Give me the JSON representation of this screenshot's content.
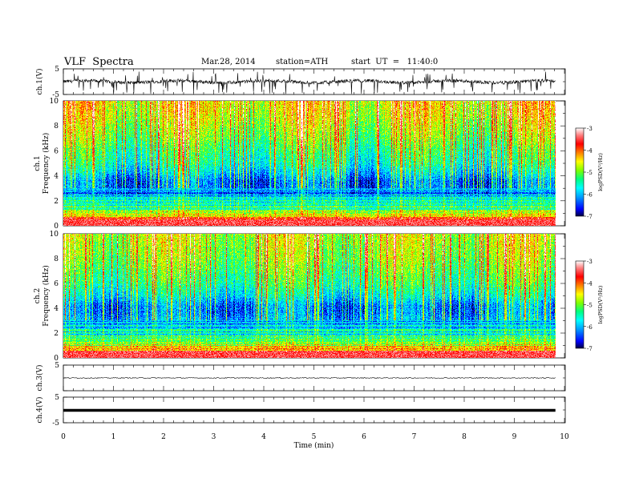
{
  "header": {
    "title": "VLF  Spectra",
    "date": "Mar.28, 2014",
    "station": "station=ATH",
    "start": "start  UT  =   11:40:0"
  },
  "chart_data": {
    "type": "heatmap",
    "x_axis": {
      "label": "Time  (min)",
      "range": [
        0,
        10
      ],
      "ticks": [
        "0",
        "1",
        "2",
        "3",
        "4",
        "5",
        "6",
        "7",
        "8",
        "9",
        "10"
      ],
      "data_extent": 9.82
    },
    "panels": [
      {
        "type": "line",
        "label": "ch.1(V)",
        "ylim": [
          -5,
          5
        ],
        "ticks": [
          "5",
          "-5"
        ],
        "trace": "noisy waveform near 0 V with frequent negative spikes"
      },
      {
        "type": "heatmap",
        "label": "ch.1",
        "ylabel": "Frequency  (kHz)",
        "ylim": [
          0,
          10
        ],
        "yticks": [
          "0",
          "2",
          "4",
          "6",
          "8",
          "10"
        ],
        "intensity_profile_log": {
          "freq_khz": [
            0.3,
            0.7,
            1.2,
            1.8,
            2.4,
            3.0,
            3.6,
            4.2,
            5.0,
            6.0,
            7.0,
            8.0,
            9.0,
            10.0
          ],
          "mean": [
            -3.3,
            -4.4,
            -5.2,
            -5.6,
            -6.0,
            -6.3,
            -6.3,
            -5.9,
            -5.5,
            -5.3,
            -5.0,
            -4.8,
            -4.6,
            -4.5
          ]
        }
      },
      {
        "type": "heatmap",
        "label": "ch.2",
        "ylabel": "Frequency  (kHz)",
        "ylim": [
          0,
          10
        ],
        "yticks": [
          "0",
          "2",
          "4",
          "6",
          "8",
          "10"
        ],
        "intensity_profile_log": {
          "freq_khz": [
            0.3,
            0.7,
            1.2,
            1.8,
            2.4,
            3.0,
            3.6,
            4.2,
            5.0,
            6.0,
            7.0,
            8.0,
            9.0,
            10.0
          ],
          "mean": [
            -3.4,
            -4.4,
            -5.1,
            -5.5,
            -5.8,
            -6.0,
            -6.2,
            -6.2,
            -5.7,
            -5.3,
            -5.1,
            -4.9,
            -4.8,
            -4.7
          ]
        }
      },
      {
        "type": "line",
        "label": "ch.3(V)",
        "ylim": [
          -5,
          5
        ],
        "ticks": [
          "5"
        ],
        "trace": "flat line near 0 V"
      },
      {
        "type": "line",
        "label": "ch.4(V)",
        "ylim": [
          -5,
          5
        ],
        "ticks": [
          "5",
          "-5"
        ],
        "trace": "thick flat line near 0 V"
      }
    ],
    "colorbar": {
      "label": "logPSD(V²/Hz)",
      "range": [
        -7,
        -3
      ],
      "ticks": [
        "-3",
        "-4",
        "-5",
        "-6",
        "-7"
      ],
      "colors": [
        "#000040",
        "#0000ff",
        "#00a0ff",
        "#00ffff",
        "#00ff80",
        "#80ff00",
        "#ffff00",
        "#ff8000",
        "#ff0000",
        "#ff8080",
        "#ffffff"
      ]
    }
  }
}
